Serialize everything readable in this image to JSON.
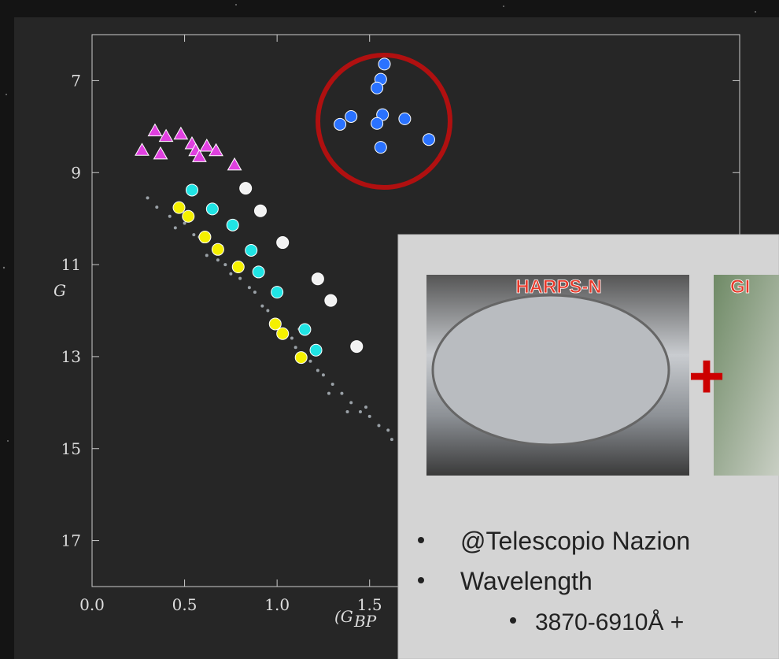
{
  "chart_data": {
    "type": "scatter",
    "y_label": "G",
    "x_label_main": "(G",
    "x_label_sub": "BP",
    "xlim": [
      0,
      3.5
    ],
    "ylim": [
      18,
      6
    ],
    "xticks": [
      {
        "value": 0,
        "label": "0.0"
      },
      {
        "value": 0.5,
        "label": "0.5"
      },
      {
        "value": 1,
        "label": "1.0"
      },
      {
        "value": 1.5,
        "label": "1.5"
      }
    ],
    "yticks": [
      7,
      9,
      11,
      13,
      15,
      17
    ],
    "series": [
      {
        "color": "#b8c0c8",
        "marker": "dot",
        "x": [
          0.3,
          0.35,
          0.42,
          0.45,
          0.5,
          0.55,
          0.6,
          0.62,
          0.68,
          0.72,
          0.75,
          0.8,
          0.85,
          0.88,
          0.92,
          0.95,
          1.0,
          1.05,
          1.08,
          1.1,
          1.15,
          1.18,
          1.22,
          1.25,
          1.3,
          1.35,
          1.4,
          1.45,
          1.5,
          1.55,
          1.6,
          1.12,
          1.2,
          0.98,
          1.28,
          1.38,
          1.48,
          0.7,
          0.58,
          1.62
        ],
        "y": [
          9.55,
          9.75,
          9.95,
          10.2,
          10.1,
          10.35,
          10.5,
          10.8,
          10.9,
          11.0,
          11.2,
          11.3,
          11.5,
          11.6,
          11.9,
          12.0,
          12.2,
          12.5,
          12.6,
          12.8,
          13.0,
          13.1,
          13.3,
          13.4,
          13.6,
          13.8,
          14.0,
          14.2,
          14.3,
          14.5,
          14.6,
          12.4,
          12.9,
          12.3,
          13.8,
          14.2,
          14.1,
          10.6,
          10.4,
          14.8
        ]
      },
      {
        "color": "#e040e0",
        "marker": "triangle",
        "x": [
          0.34,
          0.4,
          0.27,
          0.37,
          0.48,
          0.54,
          0.56,
          0.62,
          0.58,
          0.67,
          0.77
        ],
        "y": [
          8.1,
          8.22,
          8.52,
          8.6,
          8.17,
          8.38,
          8.53,
          8.43,
          8.66,
          8.53,
          8.84
        ]
      },
      {
        "color": "#20e4e4",
        "marker": "circle",
        "x": [
          0.54,
          0.65,
          0.76,
          0.86,
          0.9,
          1.0,
          1.15,
          1.21
        ],
        "y": [
          9.38,
          9.79,
          10.14,
          10.69,
          11.16,
          11.6,
          12.41,
          12.86
        ]
      },
      {
        "color": "#f2f2f2",
        "marker": "circle",
        "x": [
          0.83,
          0.91,
          1.03,
          1.22,
          1.29,
          1.43
        ],
        "y": [
          9.34,
          9.83,
          10.52,
          11.31,
          11.78,
          12.78
        ]
      },
      {
        "color": "#f5f000",
        "marker": "circle",
        "x": [
          0.47,
          0.52,
          0.61,
          0.68,
          0.79,
          0.99,
          1.03,
          1.13
        ],
        "y": [
          9.76,
          9.95,
          10.4,
          10.67,
          11.05,
          12.29,
          12.5,
          13.02
        ]
      },
      {
        "color": "#2a72ff",
        "marker": "circle",
        "x": [
          1.58,
          1.56,
          1.54,
          1.4,
          1.34,
          1.57,
          1.54,
          1.69,
          1.82,
          1.56
        ],
        "y": [
          6.64,
          6.97,
          7.16,
          7.78,
          7.95,
          7.74,
          7.93,
          7.83,
          8.28,
          8.45
        ]
      }
    ]
  },
  "panel": {
    "images": [
      {
        "label": "HARPS-N"
      },
      {
        "label": "GI"
      }
    ],
    "plus": "+",
    "bullets": [
      {
        "text": "@Telescopio Nazion"
      },
      {
        "text": "Wavelength",
        "sub": [
          "3870-6910Å +"
        ]
      }
    ]
  }
}
